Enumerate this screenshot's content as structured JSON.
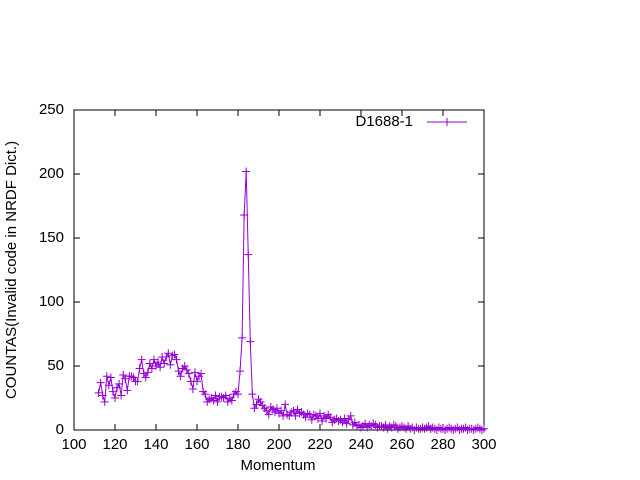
{
  "chart_data": {
    "type": "line",
    "xlabel": "Momentum",
    "ylabel": "COUNTAS(Invalid code in NRDF Dict.)",
    "xlim": [
      100,
      300
    ],
    "ylim": [
      0,
      250
    ],
    "xticks": [
      100,
      120,
      140,
      160,
      180,
      200,
      220,
      240,
      260,
      280,
      300
    ],
    "yticks": [
      0,
      50,
      100,
      150,
      200,
      250
    ],
    "legend": "top-right",
    "x": [
      112,
      113,
      114,
      115,
      116,
      117,
      118,
      119,
      120,
      121,
      122,
      123,
      124,
      125,
      126,
      127,
      128,
      129,
      130,
      131,
      132,
      133,
      134,
      135,
      136,
      137,
      138,
      139,
      140,
      141,
      142,
      143,
      144,
      145,
      146,
      147,
      148,
      149,
      150,
      151,
      152,
      153,
      154,
      155,
      156,
      157,
      158,
      159,
      160,
      161,
      162,
      163,
      164,
      165,
      166,
      167,
      168,
      169,
      170,
      171,
      172,
      173,
      174,
      175,
      176,
      177,
      178,
      179,
      180,
      181,
      182,
      183,
      184,
      185,
      186,
      187,
      188,
      189,
      190,
      191,
      192,
      193,
      194,
      195,
      196,
      197,
      198,
      199,
      200,
      201,
      202,
      203,
      204,
      205,
      206,
      207,
      208,
      209,
      210,
      211,
      212,
      213,
      214,
      215,
      216,
      217,
      218,
      219,
      220,
      221,
      222,
      223,
      224,
      225,
      226,
      227,
      228,
      229,
      230,
      231,
      232,
      233,
      234,
      235,
      236,
      237,
      238,
      239,
      240,
      241,
      242,
      243,
      244,
      245,
      246,
      247,
      248,
      249,
      250,
      251,
      252,
      253,
      254,
      255,
      256,
      257,
      258,
      259,
      260,
      261,
      262,
      263,
      264,
      265,
      266,
      267,
      268,
      269,
      270,
      271,
      272,
      273,
      274,
      275,
      276,
      277,
      278,
      279,
      280,
      281,
      282,
      283,
      284,
      285,
      286,
      287,
      288,
      289,
      290,
      291,
      292,
      293,
      294,
      295,
      296,
      297,
      298,
      299,
      300
    ],
    "series": [
      {
        "name": "D1688-1",
        "color": "#9400d3",
        "values": [
          29,
          37,
          27,
          22,
          42,
          35,
          41,
          30,
          25,
          33,
          36,
          27,
          43,
          40,
          31,
          42,
          42,
          41,
          38,
          38,
          48,
          55,
          44,
          41,
          45,
          52,
          48,
          55,
          50,
          53,
          49,
          57,
          52,
          57,
          60,
          51,
          58,
          59,
          55,
          46,
          42,
          48,
          50,
          47,
          44,
          38,
          32,
          45,
          38,
          42,
          44,
          30,
          28,
          22,
          24,
          25,
          23,
          27,
          22,
          26,
          26,
          25,
          27,
          22,
          25,
          23,
          28,
          30,
          28,
          46,
          72,
          168,
          202,
          137,
          69,
          28,
          17,
          20,
          24,
          22,
          19,
          17,
          15,
          12,
          18,
          16,
          14,
          17,
          13,
          15,
          11,
          20,
          12,
          11,
          14,
          15,
          11,
          16,
          13,
          14,
          12,
          10,
          13,
          12,
          8,
          12,
          11,
          9,
          13,
          7,
          11,
          9,
          12,
          10,
          6,
          8,
          9,
          7,
          8,
          6,
          9,
          5,
          8,
          11,
          4,
          6,
          3,
          4,
          2,
          3,
          5,
          2,
          4,
          3,
          5,
          4,
          2,
          3,
          3,
          2,
          4,
          1,
          3,
          2,
          4,
          3,
          1,
          2,
          3,
          2,
          1,
          3,
          1,
          2,
          0,
          2,
          1,
          1,
          2,
          1,
          2,
          3,
          1,
          2,
          1,
          0,
          2,
          1,
          1,
          0,
          1,
          2,
          1,
          0,
          1,
          2,
          0,
          1,
          1,
          2,
          0,
          1,
          1,
          0,
          1,
          2,
          1,
          0,
          1
        ]
      }
    ]
  }
}
